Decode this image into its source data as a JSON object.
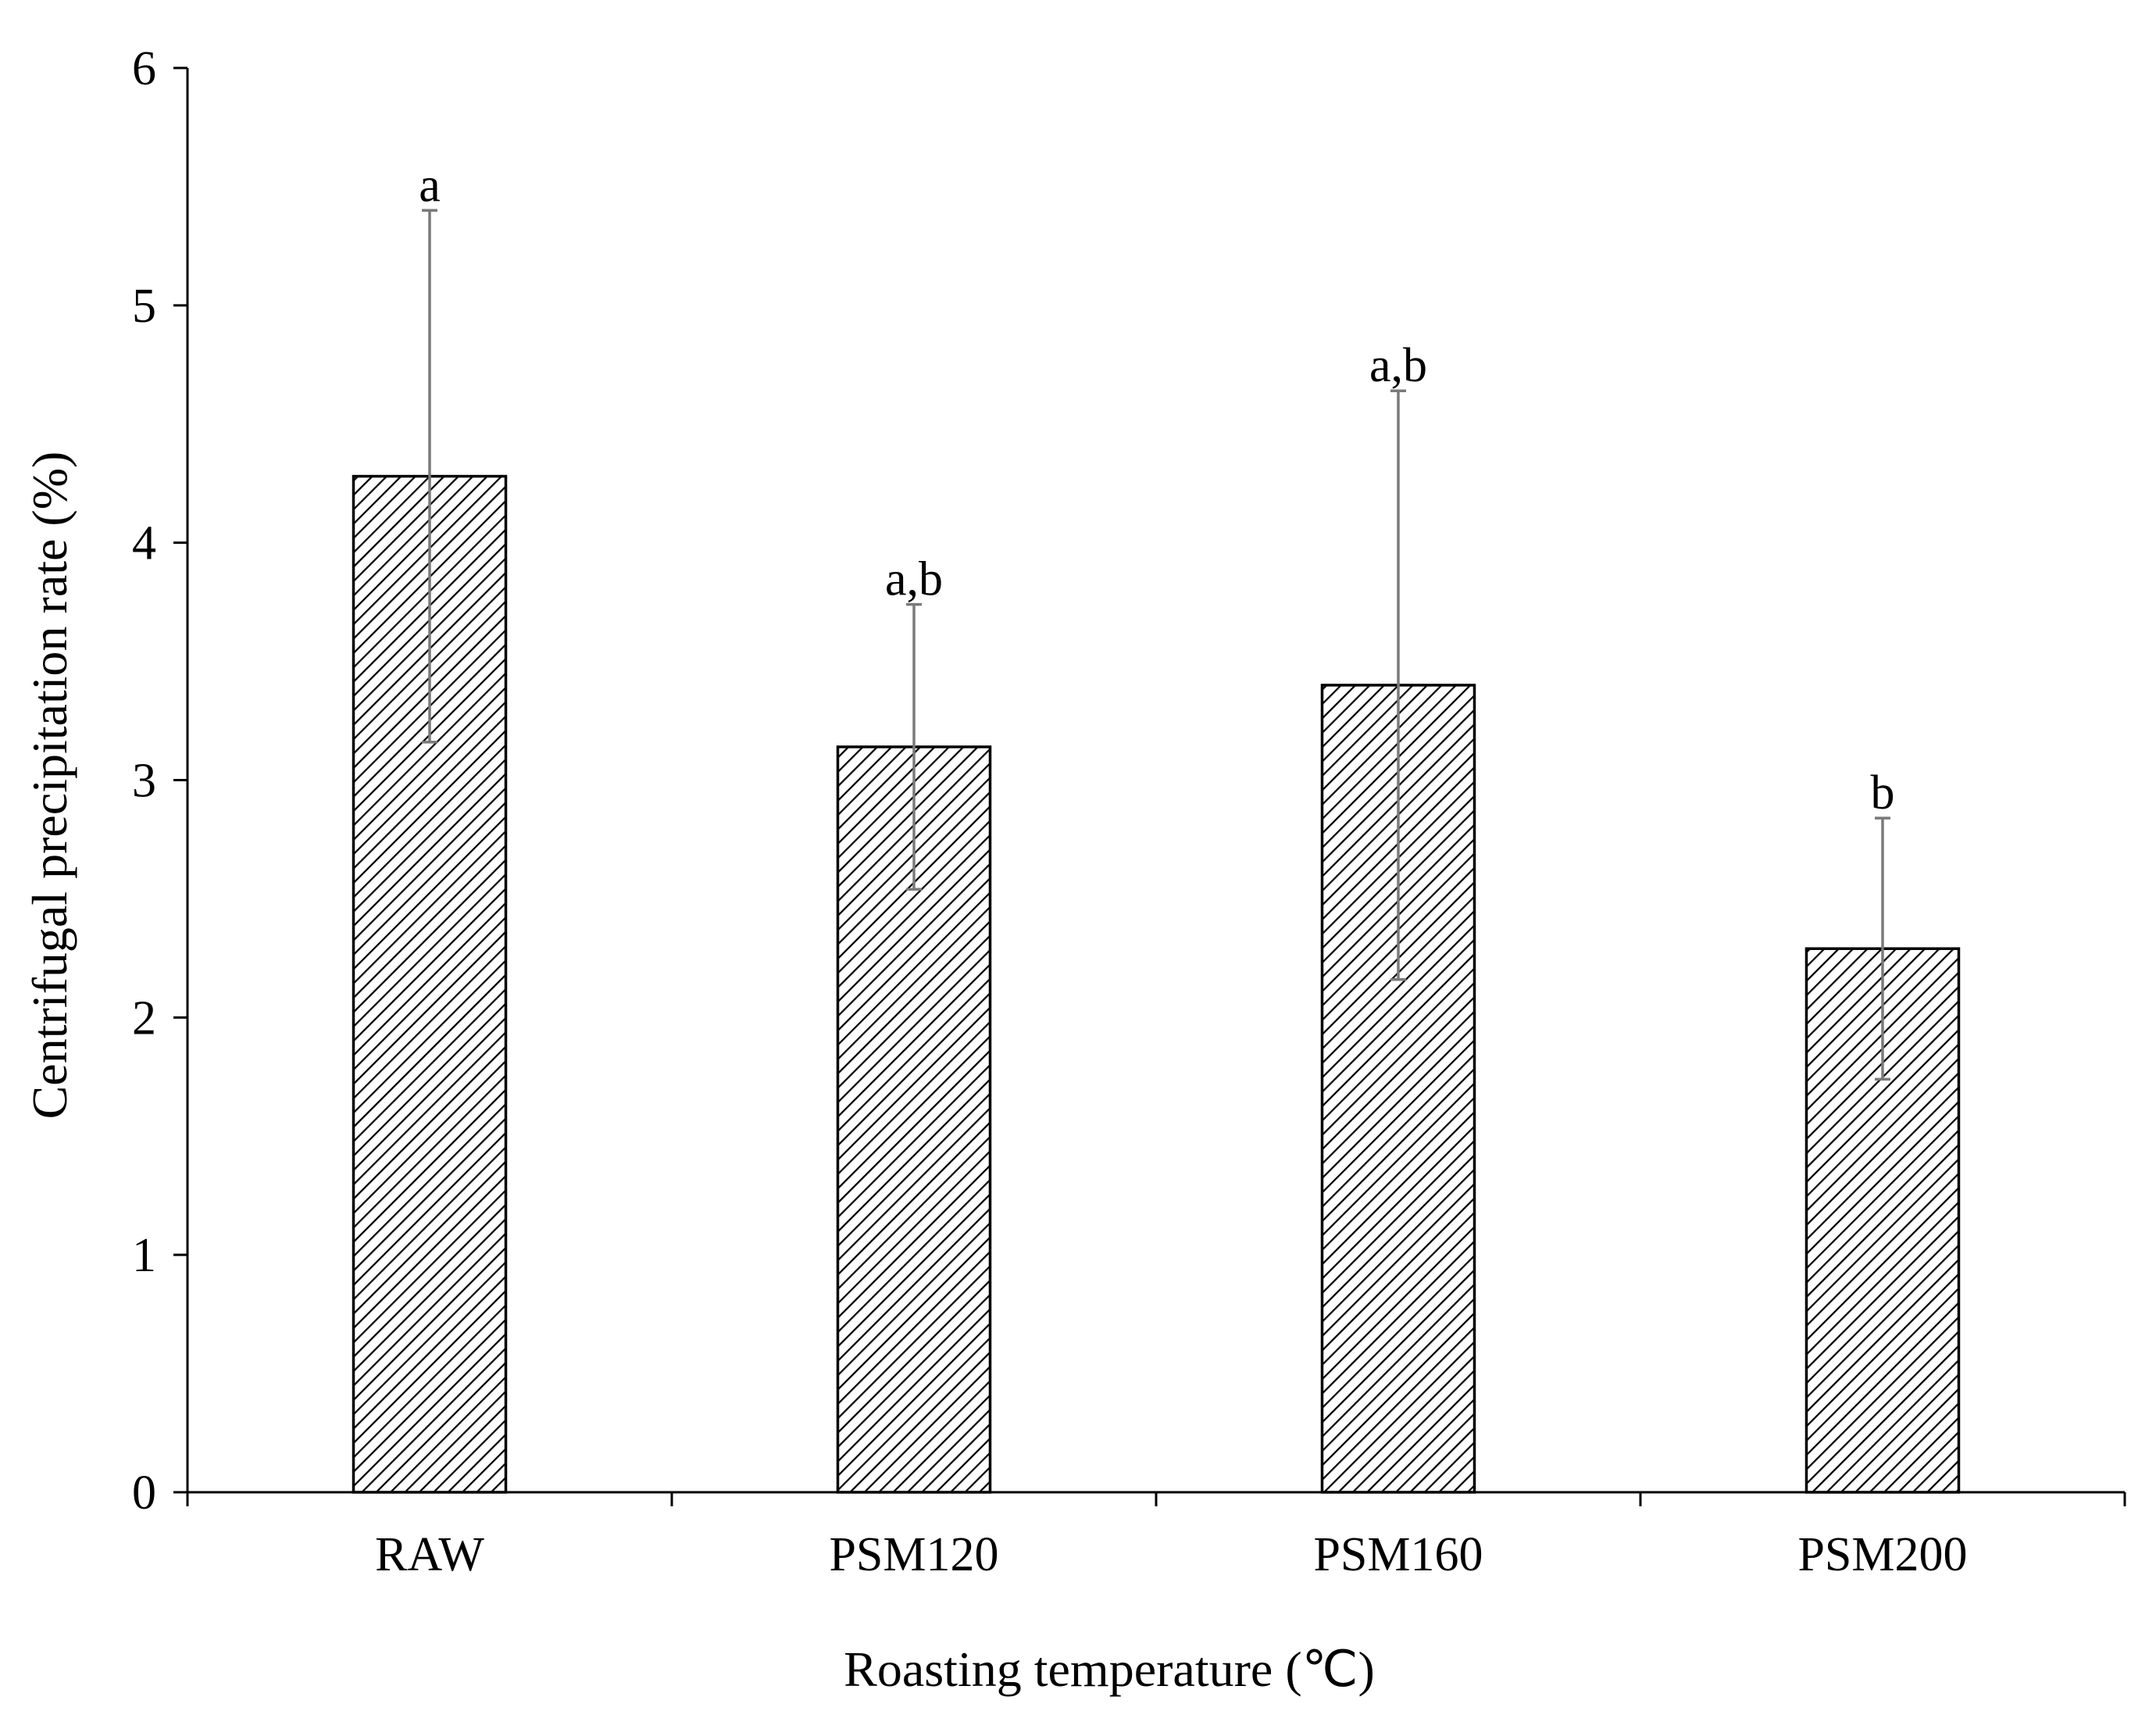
{
  "chart_data": {
    "type": "bar",
    "title": "",
    "xlabel": "Roasting temperature (℃)",
    "ylabel": "Centrifugal precipitation rate (%)",
    "categories": [
      "RAW",
      "PSM120",
      "PSM160",
      "PSM200"
    ],
    "values": [
      4.28,
      3.14,
      3.4,
      2.29
    ],
    "errors": [
      1.12,
      0.6,
      1.24,
      0.55
    ],
    "significance": [
      "a",
      "a,b",
      "a,b",
      "b"
    ],
    "ylim": [
      0,
      6
    ],
    "yticks": [
      0,
      1,
      2,
      3,
      4,
      5,
      6
    ],
    "ytick_labels": [
      "0",
      "1",
      "2",
      "3",
      "4",
      "5",
      "6"
    ],
    "grid": false,
    "bar_fill": "diagonal-hatch",
    "colors": {
      "bar_stroke": "#000000",
      "hatch": "#000000",
      "error_bar": "#7a7a7a",
      "axis": "#000000"
    }
  }
}
